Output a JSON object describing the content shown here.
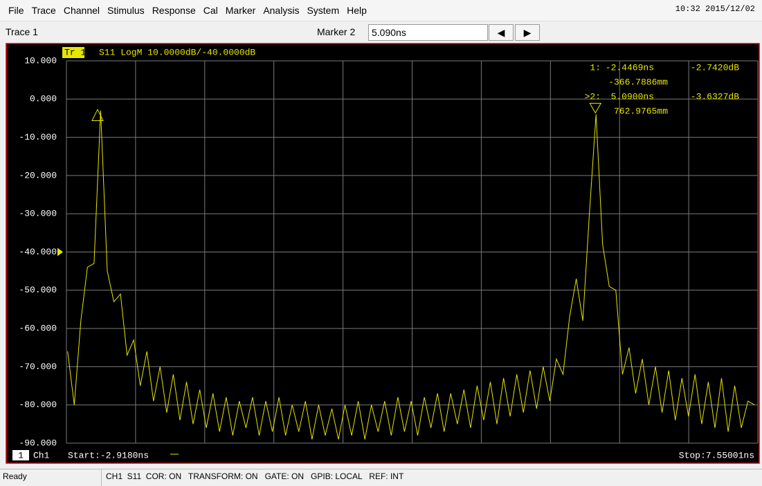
{
  "menu": [
    "File",
    "Trace",
    "Channel",
    "Stimulus",
    "Response",
    "Cal",
    "Marker",
    "Analysis",
    "System",
    "Help"
  ],
  "clock": "10:32 2015/12/02",
  "toolbar": {
    "trace": "Trace 1",
    "marker_label": "Marker 2",
    "marker_value": "5.090ns"
  },
  "chart_data": {
    "type": "line",
    "trace_tag": "Tr 1",
    "trace_info": "S11 LogM 10.0000dB/-40.0000dB",
    "channel_number": "1",
    "channel": "Ch1",
    "start_label": "Start:-2.9180ns",
    "stop_label": "Stop:7.55001ns",
    "xlim": [
      -2.918,
      7.55001
    ],
    "ylim": [
      -90,
      10
    ],
    "yticks": [
      {
        "value": 10,
        "label": "10.000"
      },
      {
        "value": 0,
        "label": "0.000"
      },
      {
        "value": -10,
        "label": "-10.000"
      },
      {
        "value": -20,
        "label": "-20.000"
      },
      {
        "value": -30,
        "label": "-30.000"
      },
      {
        "value": -40,
        "label": "-40.000"
      },
      {
        "value": -50,
        "label": "-50.000"
      },
      {
        "value": -60,
        "label": "-60.000"
      },
      {
        "value": -70,
        "label": "-70.000"
      },
      {
        "value": -80,
        "label": "-80.000"
      },
      {
        "value": -90,
        "label": "-90.000"
      }
    ],
    "reference_level": -40,
    "grid": true,
    "series": [
      {
        "name": "S11",
        "color": "#e6e600",
        "x": [
          -2.9,
          -2.8,
          -2.7,
          -2.6,
          -2.5,
          -2.4,
          -2.3,
          -2.2,
          -2.1,
          -2.0,
          -1.9,
          -1.8,
          -1.7,
          -1.6,
          -1.5,
          -1.4,
          -1.3,
          -1.2,
          -1.1,
          -1.0,
          -0.9,
          -0.8,
          -0.7,
          -0.6,
          -0.5,
          -0.4,
          -0.3,
          -0.2,
          -0.1,
          0.0,
          0.1,
          0.2,
          0.3,
          0.4,
          0.5,
          0.6,
          0.7,
          0.8,
          0.9,
          1.0,
          1.1,
          1.2,
          1.3,
          1.4,
          1.5,
          1.6,
          1.7,
          1.8,
          1.9,
          2.0,
          2.1,
          2.2,
          2.3,
          2.4,
          2.5,
          2.6,
          2.7,
          2.8,
          2.9,
          3.0,
          3.1,
          3.2,
          3.3,
          3.4,
          3.5,
          3.6,
          3.7,
          3.8,
          3.9,
          4.0,
          4.1,
          4.2,
          4.3,
          4.4,
          4.5,
          4.6,
          4.7,
          4.8,
          4.9,
          5.0,
          5.1,
          5.2,
          5.3,
          5.4,
          5.5,
          5.6,
          5.7,
          5.8,
          5.9,
          6.0,
          6.1,
          6.2,
          6.3,
          6.4,
          6.5,
          6.6,
          6.7,
          6.8,
          6.9,
          7.0,
          7.1,
          7.2,
          7.3,
          7.4,
          7.5
        ],
        "values": [
          -66,
          -80,
          -58,
          -44,
          -43,
          -3,
          -45,
          -53,
          -51,
          -67,
          -63,
          -75,
          -66,
          -79,
          -70,
          -82,
          -72,
          -84,
          -74,
          -85,
          -76,
          -86,
          -77,
          -87,
          -78,
          -88,
          -79,
          -86,
          -78,
          -88,
          -79,
          -87,
          -78,
          -88,
          -80,
          -87,
          -79,
          -89,
          -80,
          -88,
          -81,
          -89,
          -80,
          -88,
          -79,
          -89,
          -80,
          -87,
          -79,
          -88,
          -78,
          -87,
          -79,
          -88,
          -78,
          -86,
          -77,
          -87,
          -77,
          -85,
          -76,
          -86,
          -75,
          -84,
          -74,
          -85,
          -73,
          -83,
          -72,
          -82,
          -71,
          -81,
          -70,
          -79,
          -68,
          -72,
          -57,
          -47,
          -58,
          -30,
          -4,
          -38,
          -49,
          -50,
          -72,
          -65,
          -77,
          -68,
          -80,
          -70,
          -82,
          -71,
          -84,
          -73,
          -83,
          -72,
          -85,
          -74,
          -86,
          -73,
          -87,
          -75,
          -86,
          -79,
          -80
        ]
      }
    ],
    "markers": [
      {
        "id": "1:",
        "x": -2.4469,
        "y": -2.742,
        "x_label": "-2.4469ns",
        "y_label": "-2.7420dB",
        "distance": "-366.7886mm",
        "direction": "up"
      },
      {
        "id": ">2:",
        "x": 5.09,
        "y": -3.6327,
        "x_label": "5.0900ns",
        "y_label": "-3.6327dB",
        "distance": "762.9765mm",
        "direction": "down"
      }
    ]
  },
  "status": {
    "state": "Ready",
    "info": "CH1  S11  COR: ON   TRANSFORM: ON   GATE: ON   GPIB: LOCAL   REF: INT"
  }
}
